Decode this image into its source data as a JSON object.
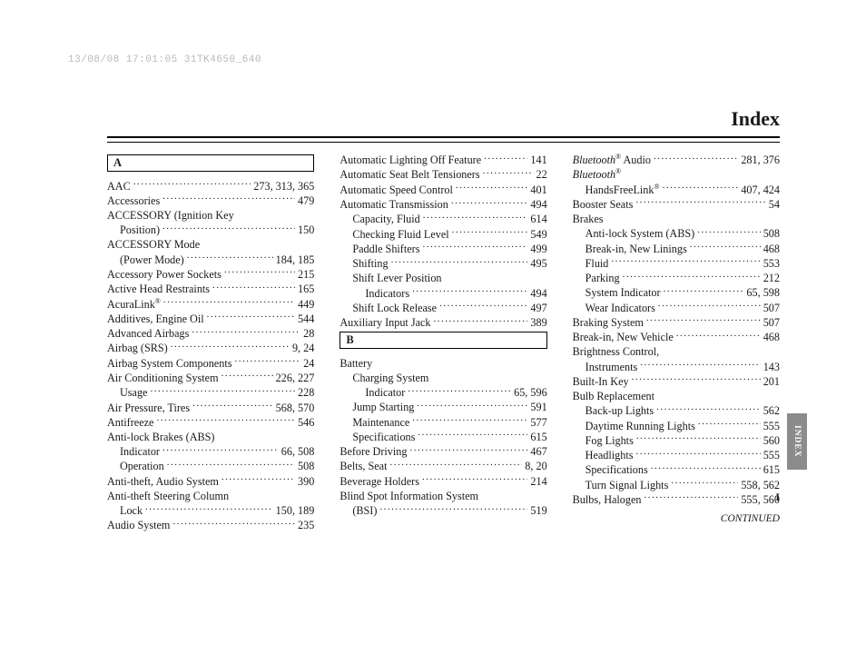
{
  "stamp": "13/08/08 17:01:05 31TK4650_640",
  "title": "Index",
  "side_tab": "INDEX",
  "continued": "CONTINUED",
  "page_marker": "I",
  "columns": [
    {
      "letter": "A",
      "entries": [
        {
          "t": "AAC",
          "p": "273, 313, 365"
        },
        {
          "t": "Accessories",
          "p": "479"
        },
        {
          "t": "ACCESSORY (Ignition Key",
          "nopage": true
        },
        {
          "t": "Position)",
          "p": "150",
          "i": 1
        },
        {
          "t": "ACCESSORY Mode",
          "nopage": true
        },
        {
          "t": "(Power Mode)",
          "p": "184, 185",
          "i": 1
        },
        {
          "t": "Accessory Power Sockets",
          "p": "215"
        },
        {
          "t": "Active Head Restraints",
          "p": "165"
        },
        {
          "t": "AcuraLink",
          "sup": "®",
          "p": "449"
        },
        {
          "t": "Additives, Engine Oil",
          "p": "544"
        },
        {
          "t": "Advanced Airbags",
          "p": "28"
        },
        {
          "t": "Airbag (SRS)",
          "p": "9, 24"
        },
        {
          "t": "Airbag System Components",
          "p": "24"
        },
        {
          "t": "Air Conditioning System",
          "p": "226, 227"
        },
        {
          "t": "Usage",
          "p": "228",
          "i": 1
        },
        {
          "t": "Air Pressure, Tires",
          "p": "568, 570"
        },
        {
          "t": "Antifreeze",
          "p": "546"
        },
        {
          "t": "Anti-lock Brakes (ABS)",
          "nopage": true
        },
        {
          "t": "Indicator",
          "p": "66, 508",
          "i": 1
        },
        {
          "t": "Operation",
          "p": "508",
          "i": 1
        },
        {
          "t": "Anti-theft, Audio System",
          "p": "390"
        },
        {
          "t": "Anti-theft Steering Column",
          "nopage": true
        },
        {
          "t": "Lock",
          "p": "150, 189",
          "i": 1
        },
        {
          "t": "Audio System",
          "p": "235"
        }
      ]
    },
    {
      "entries_before_letter": [
        {
          "t": "Automatic Lighting Off Feature",
          "p": "141"
        },
        {
          "t": "Automatic Seat Belt Tensioners",
          "p": "22"
        },
        {
          "t": "Automatic Speed Control",
          "p": "401"
        },
        {
          "t": "Automatic Transmission",
          "p": "494"
        },
        {
          "t": "Capacity, Fluid",
          "p": "614",
          "i": 1
        },
        {
          "t": "Checking Fluid Level",
          "p": "549",
          "i": 1
        },
        {
          "t": "Paddle Shifters",
          "p": "499",
          "i": 1
        },
        {
          "t": "Shifting",
          "p": "495",
          "i": 1
        },
        {
          "t": "Shift Lever Position",
          "nopage": true,
          "i": 1
        },
        {
          "t": "Indicators",
          "p": "494",
          "i": 2
        },
        {
          "t": "Shift Lock Release",
          "p": "497",
          "i": 1
        },
        {
          "t": "Auxiliary Input Jack",
          "p": "389"
        }
      ],
      "letter": "B",
      "entries": [
        {
          "t": "Battery",
          "nopage": true
        },
        {
          "t": "Charging System",
          "nopage": true,
          "i": 1
        },
        {
          "t": "Indicator",
          "p": "65, 596",
          "i": 2
        },
        {
          "t": "Jump Starting",
          "p": "591",
          "i": 1
        },
        {
          "t": "Maintenance",
          "p": "577",
          "i": 1
        },
        {
          "t": "Specifications",
          "p": "615",
          "i": 1
        },
        {
          "t": "Before Driving",
          "p": "467"
        },
        {
          "t": "Belts, Seat",
          "p": "8, 20"
        },
        {
          "t": "Beverage Holders",
          "p": "214"
        },
        {
          "t": "Blind Spot Information System",
          "nopage": true
        },
        {
          "t": "(BSI)",
          "p": "519",
          "i": 1
        }
      ]
    },
    {
      "entries": [
        {
          "t": "Bluetooth",
          "italic": true,
          "sup": "®",
          "after": " Audio",
          "p": "281, 376"
        },
        {
          "t": "Bluetooth",
          "italic": true,
          "sup": "®",
          "nopage": true
        },
        {
          "t": "HandsFreeLink",
          "sup": "®",
          "p": "407, 424",
          "i": 1
        },
        {
          "t": "Booster Seats",
          "p": "54"
        },
        {
          "t": "Brakes",
          "nopage": true
        },
        {
          "t": "Anti-lock System (ABS)",
          "p": "508",
          "i": 1
        },
        {
          "t": "Break-in, New Linings",
          "p": "468",
          "i": 1
        },
        {
          "t": "Fluid",
          "p": "553",
          "i": 1
        },
        {
          "t": "Parking",
          "p": "212",
          "i": 1
        },
        {
          "t": "System Indicator",
          "p": "65, 598",
          "i": 1
        },
        {
          "t": "Wear Indicators",
          "p": "507",
          "i": 1
        },
        {
          "t": "Braking System",
          "p": "507"
        },
        {
          "t": "Break-in, New Vehicle",
          "p": "468"
        },
        {
          "t": "Brightness Control,",
          "nopage": true
        },
        {
          "t": "Instruments",
          "p": "143",
          "i": 1
        },
        {
          "t": "Built-In Key",
          "p": "201"
        },
        {
          "t": "Bulb Replacement",
          "nopage": true
        },
        {
          "t": "Back-up Lights",
          "p": "562",
          "i": 1
        },
        {
          "t": "Daytime Running Lights",
          "p": "555",
          "i": 1
        },
        {
          "t": "Fog Lights",
          "p": "560",
          "i": 1
        },
        {
          "t": "Headlights",
          "p": "555",
          "i": 1
        },
        {
          "t": "Specifications",
          "p": "615",
          "i": 1
        },
        {
          "t": "Turn Signal Lights",
          "p": "558, 562",
          "i": 1
        },
        {
          "t": "Bulbs, Halogen",
          "p": "555, 560"
        }
      ],
      "continued": true
    }
  ]
}
